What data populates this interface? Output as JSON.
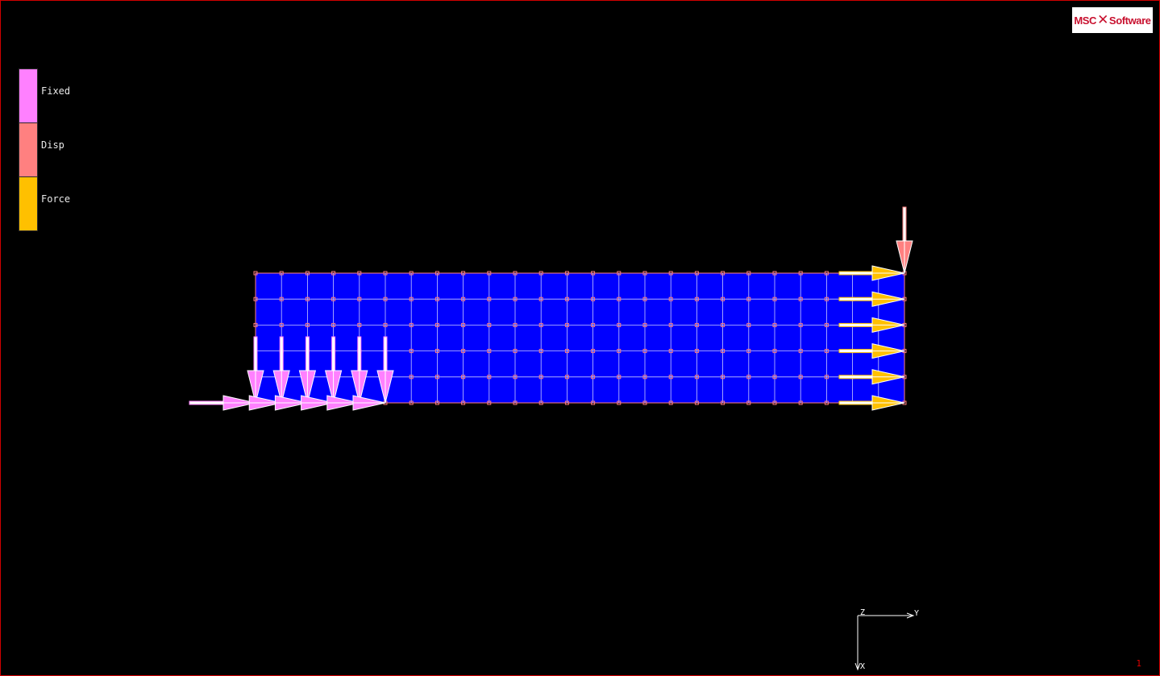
{
  "logo": {
    "left": "MSC",
    "right": "Software"
  },
  "legend": [
    {
      "label": "Fixed",
      "color": "#ff80ff"
    },
    {
      "label": "Disp",
      "color": "#ff8080"
    },
    {
      "label": "Force",
      "color": "#ffc000"
    }
  ],
  "model": {
    "fill_color": "#0000ff",
    "edge_color": "#ff8080",
    "grid_line_color": "#c8c8ff",
    "node_color": "#ff8080",
    "columns": 25,
    "rows": 5
  },
  "boundary_conditions": {
    "fixed_color": "#ff80ff",
    "disp_color": "#ff8080",
    "force_color": "#ffc000"
  },
  "axes": {
    "z_label": "Z",
    "y_label": "Y",
    "x_label": "X"
  },
  "viewport_number": "1"
}
